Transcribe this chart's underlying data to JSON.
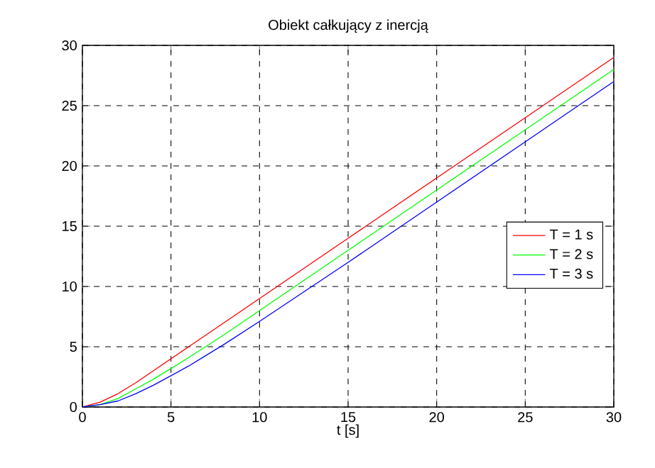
{
  "chart_data": {
    "type": "line",
    "title": "Obiekt całkujący z inercją",
    "xlabel": "t [s]",
    "x": [
      0,
      1,
      2,
      3,
      4,
      5,
      6,
      8,
      10,
      15,
      20,
      25,
      30
    ],
    "series": [
      {
        "name": "T = 1 s",
        "color": "#ff0000",
        "values": [
          0,
          0.4,
          1.1,
          2.0,
          3.0,
          4.0,
          5.0,
          7.0,
          9.0,
          14.0,
          19.0,
          24.0,
          29.0
        ]
      },
      {
        "name": "T = 2 s",
        "color": "#00ff00",
        "values": [
          0,
          0.2,
          0.7,
          1.5,
          2.3,
          3.2,
          4.1,
          6.0,
          8.0,
          13.0,
          18.0,
          23.0,
          28.0
        ]
      },
      {
        "name": "T = 3 s",
        "color": "#0000ff",
        "values": [
          0,
          0.2,
          0.5,
          1.1,
          1.8,
          2.6,
          3.4,
          5.2,
          7.1,
          12.0,
          17.0,
          22.0,
          27.0
        ]
      }
    ],
    "xlim": [
      0,
      30
    ],
    "ylim": [
      0,
      30
    ],
    "xticks": [
      0,
      5,
      10,
      15,
      20,
      25,
      30
    ],
    "yticks": [
      0,
      5,
      10,
      15,
      20,
      25,
      30
    ],
    "grid": true,
    "legend": "right",
    "marker": "none",
    "line_style": "solid"
  }
}
